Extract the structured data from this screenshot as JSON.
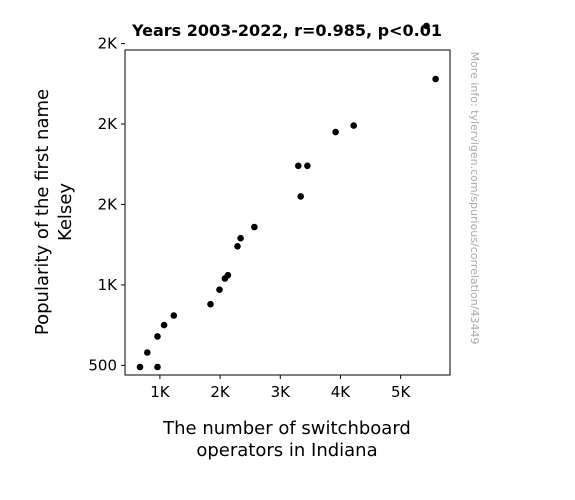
{
  "chart_data": {
    "type": "scatter",
    "title": "Years 2003-2022, r=0.985, p<0.01",
    "xlabel": [
      "The number of switchboard",
      "operators in Indiana"
    ],
    "ylabel": [
      "Popularity of the first name",
      "Kelsey"
    ],
    "xlim": [
      420,
      5820
    ],
    "ylim": [
      440,
      2460
    ],
    "x_ticks": [
      {
        "value": 1000,
        "label": "1K"
      },
      {
        "value": 2000,
        "label": "2K"
      },
      {
        "value": 3000,
        "label": "3K"
      },
      {
        "value": 4000,
        "label": "4K"
      },
      {
        "value": 5000,
        "label": "5K"
      }
    ],
    "y_ticks": [
      {
        "value": 500,
        "label": "500"
      },
      {
        "value": 1000,
        "label": "1K"
      },
      {
        "value": 1500,
        "label": "2K"
      },
      {
        "value": 2000,
        "label": "2K"
      },
      {
        "value": 2500,
        "label": "2K"
      }
    ],
    "marker_color": "#000000",
    "points": [
      {
        "x": 670,
        "y": 490
      },
      {
        "x": 790,
        "y": 580
      },
      {
        "x": 960,
        "y": 490
      },
      {
        "x": 960,
        "y": 680
      },
      {
        "x": 1070,
        "y": 750
      },
      {
        "x": 1230,
        "y": 810
      },
      {
        "x": 1840,
        "y": 880
      },
      {
        "x": 1990,
        "y": 970
      },
      {
        "x": 2080,
        "y": 1040
      },
      {
        "x": 2130,
        "y": 1060
      },
      {
        "x": 2290,
        "y": 1240
      },
      {
        "x": 2340,
        "y": 1290
      },
      {
        "x": 2570,
        "y": 1360
      },
      {
        "x": 3300,
        "y": 1740
      },
      {
        "x": 3340,
        "y": 1550
      },
      {
        "x": 3450,
        "y": 1740
      },
      {
        "x": 3920,
        "y": 1950
      },
      {
        "x": 4220,
        "y": 1990
      },
      {
        "x": 5430,
        "y": 2610
      },
      {
        "x": 5580,
        "y": 2280
      }
    ]
  },
  "watermark": "More info: tylervigen.com/spurious/correlation/43449"
}
